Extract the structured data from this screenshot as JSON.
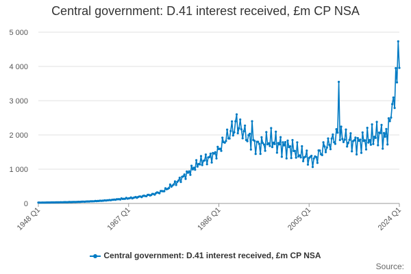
{
  "chart_data": {
    "type": "line",
    "title": "Central government: D.41 interest received, £m CP NSA",
    "xlabel": "",
    "ylabel": "",
    "x_range": [
      "1948 Q1",
      "2024 Q1"
    ],
    "x_ticks": [
      "1948 Q1",
      "1967 Q1",
      "1986 Q1",
      "2005 Q1",
      "2024 Q1"
    ],
    "ylim": [
      0,
      5000
    ],
    "y_ticks": [
      "0",
      "1 000",
      "2 000",
      "3 000",
      "4 000",
      "5 000"
    ],
    "grid": "horizontal",
    "legend_position": "bottom",
    "color": "#007ac3",
    "series": [
      {
        "name": "Central government: D.41 interest received, £m CP NSA",
        "anchors": [
          [
            "1948 Q1",
            25
          ],
          [
            "1950 Q1",
            28
          ],
          [
            "1952 Q1",
            32
          ],
          [
            "1954 Q1",
            38
          ],
          [
            "1956 Q1",
            45
          ],
          [
            "1958 Q1",
            55
          ],
          [
            "1960 Q1",
            68
          ],
          [
            "1962 Q1",
            85
          ],
          [
            "1964 Q1",
            110
          ],
          [
            "1966 Q1",
            140
          ],
          [
            "1968 Q1",
            165
          ],
          [
            "1970 Q1",
            210
          ],
          [
            "1972 Q1",
            260
          ],
          [
            "1974 Q1",
            350
          ],
          [
            "1975 Q1",
            420
          ],
          [
            "1976 Q1",
            520
          ],
          [
            "1977 Q1",
            600
          ],
          [
            "1978 Q1",
            720
          ],
          [
            "1979 Q1",
            830
          ],
          [
            "1980 Q1",
            950
          ],
          [
            "1981 Q1",
            1080
          ],
          [
            "1982 Q1",
            1200
          ],
          [
            "1983 Q1",
            1270
          ],
          [
            "1984 Q1",
            1330
          ],
          [
            "1985 Q1",
            1420
          ],
          [
            "1986 Q1",
            1560
          ],
          [
            "1987 Q1",
            1800
          ],
          [
            "1988 Q1",
            2000
          ],
          [
            "1989 Q1",
            2180
          ],
          [
            "1990 Q1",
            2300
          ],
          [
            "1991 Q1",
            2120
          ],
          [
            "1992 Q1",
            1950
          ],
          [
            "1993 Q1",
            1750
          ],
          [
            "1994 Q1",
            1700
          ],
          [
            "1995 Q1",
            1720
          ],
          [
            "1996 Q1",
            1780
          ],
          [
            "1997 Q1",
            1850
          ],
          [
            "1998 Q1",
            1780
          ],
          [
            "1999 Q1",
            1700
          ],
          [
            "2000 Q1",
            1650
          ],
          [
            "2001 Q1",
            1620
          ],
          [
            "2002 Q1",
            1550
          ],
          [
            "2003 Q1",
            1450
          ],
          [
            "2004 Q1",
            1380
          ],
          [
            "2005 Q1",
            1320
          ],
          [
            "2006 Q1",
            1250
          ],
          [
            "2007 Q1",
            1420
          ],
          [
            "2008 Q1",
            1600
          ],
          [
            "2009 Q1",
            1700
          ],
          [
            "2010 Q1",
            1850
          ],
          [
            "2011 Q1",
            2000
          ],
          [
            "2012 Q1",
            1950
          ],
          [
            "2013 Q1",
            1850
          ],
          [
            "2014 Q1",
            1800
          ],
          [
            "2015 Q1",
            1750
          ],
          [
            "2016 Q1",
            1800
          ],
          [
            "2017 Q1",
            1850
          ],
          [
            "2018 Q1",
            1900
          ],
          [
            "2019 Q1",
            2000
          ],
          [
            "2020 Q1",
            2050
          ],
          [
            "2021 Q1",
            1900
          ],
          [
            "2022 Q1",
            2350
          ],
          [
            "2023 Q1",
            2800
          ],
          [
            "2023 Q3",
            3950
          ],
          [
            "2024 Q1",
            4150
          ]
        ],
        "notable_values": [
          [
            "1989 Q4",
            2600
          ],
          [
            "1993 Q1",
            2400
          ],
          [
            "2011 Q2",
            3550
          ],
          [
            "2022 Q3",
            2900
          ],
          [
            "2023 Q2",
            3950
          ]
        ]
      }
    ]
  },
  "legend": {
    "label": "Central government: D.41 interest received, £m CP NSA"
  },
  "source_label": "Source:"
}
